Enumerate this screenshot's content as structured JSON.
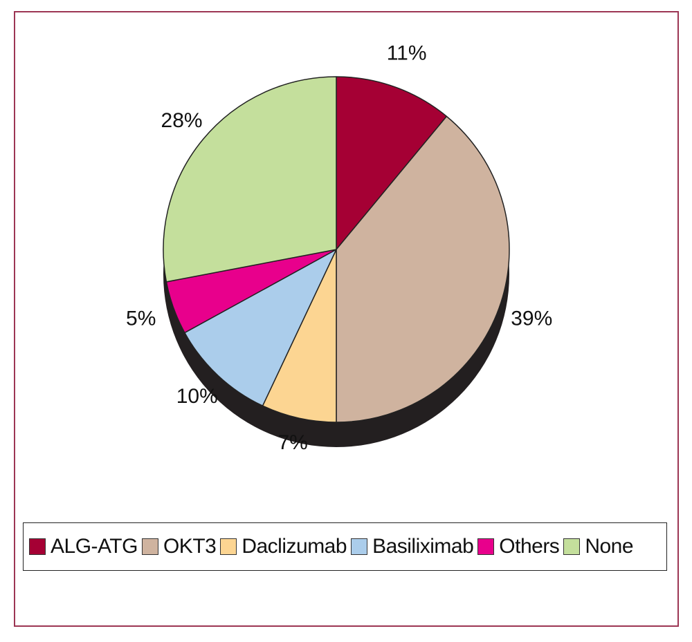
{
  "chart_data": {
    "type": "pie",
    "title": "",
    "slices": [
      {
        "name": "ALG-ATG",
        "value": 11,
        "label": "11%",
        "color": "#a50034"
      },
      {
        "name": "OKT3",
        "value": 39,
        "label": "39%",
        "color": "#cfb39f"
      },
      {
        "name": "Daclizumab",
        "value": 7,
        "label": "7%",
        "color": "#fcd592"
      },
      {
        "name": "Basiliximab",
        "value": 10,
        "label": "10%",
        "color": "#abcdeb"
      },
      {
        "name": "Others",
        "value": 5,
        "label": "5%",
        "color": "#e8008c"
      },
      {
        "name": "None",
        "value": 28,
        "label": "28%",
        "color": "#c4df9c"
      }
    ],
    "start": "12 o'clock",
    "direction": "clockwise",
    "style": "3d-shadow",
    "legend": {
      "placement": "bottom"
    }
  },
  "colors": {
    "frame_border": "#9c3553",
    "shadow": "#231f20"
  }
}
